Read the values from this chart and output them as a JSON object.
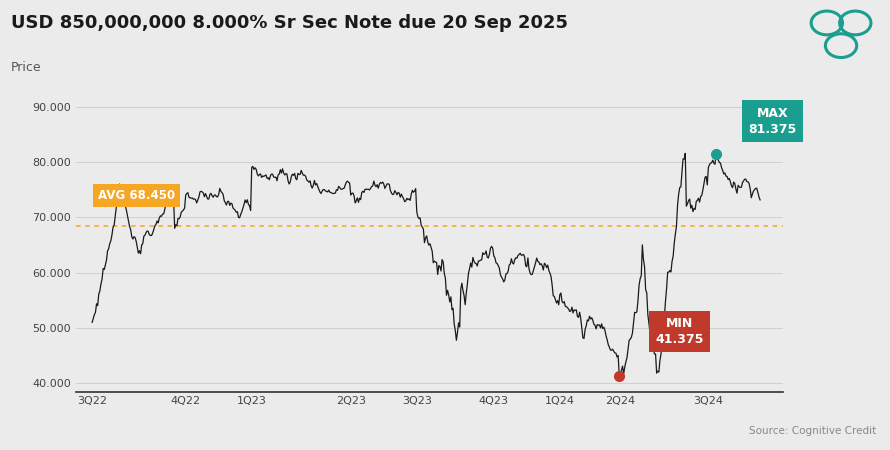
{
  "title": "USD 850,000,000 8.000% Sr Sec Note due 20 Sep 2025",
  "subtitle": "Price",
  "source": "Source: Cognitive Credit",
  "avg_value": 68.45,
  "min_value": 41.375,
  "max_value": 81.375,
  "ylim": [
    38.5,
    93
  ],
  "yticks": [
    40.0,
    50.0,
    60.0,
    70.0,
    80.0,
    90.0
  ],
  "ytick_labels": [
    "40.000",
    "50.000",
    "60.000",
    "70.000",
    "80.000",
    "90.000"
  ],
  "background_color": "#ebebeb",
  "plot_bg_color": "#ebebeb",
  "line_color": "#1a1a1a",
  "avg_line_color": "#f5a623",
  "avg_box_color": "#f5a623",
  "min_box_color": "#c0392b",
  "max_box_color": "#1a9e8f",
  "min_dot_color": "#c0392b",
  "max_dot_color": "#1a9e8f",
  "title_fontsize": 13,
  "subtitle_fontsize": 9,
  "tick_labels": [
    "3Q22",
    "4Q22",
    "1Q23",
    "2Q23",
    "3Q23",
    "4Q23",
    "1Q24",
    "2Q24",
    "3Q24"
  ],
  "logo_color": "#1a9e8f",
  "grid_color": "#d0d0d0",
  "bottom_line_color": "#333333"
}
